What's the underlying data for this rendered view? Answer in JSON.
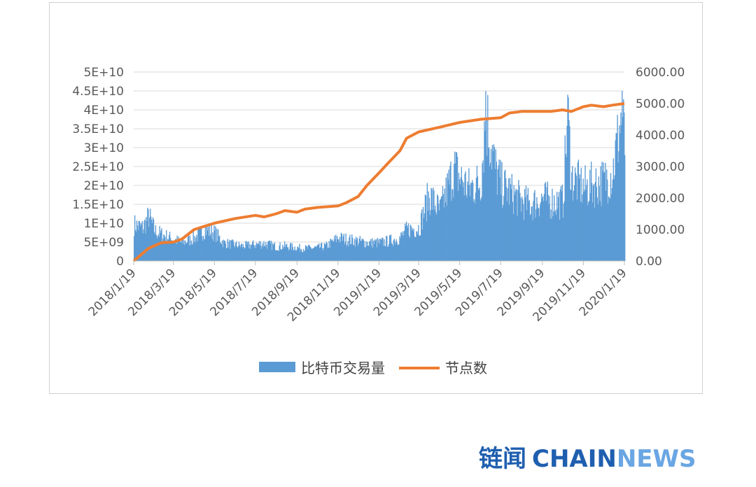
{
  "chart_data": {
    "type": "bar+line",
    "title": "",
    "x_tick_labels": [
      "2018/1/19",
      "2018/3/19",
      "2018/5/19",
      "2018/7/19",
      "2018/9/19",
      "2018/11/19",
      "2019/1/19",
      "2019/3/19",
      "2019/5/19",
      "2019/7/19",
      "2019/9/19",
      "2019/11/19",
      "2020/1/19"
    ],
    "x_range": [
      "2018/1/19",
      "2020/1/19"
    ],
    "y_left": {
      "ticks": [
        "0",
        "5E+09",
        "1E+10",
        "1.5E+10",
        "2E+10",
        "2.5E+10",
        "3E+10",
        "3.5E+10",
        "4E+10",
        "4.5E+10",
        "5E+10"
      ],
      "range": [
        0,
        50000000000
      ]
    },
    "y_right": {
      "ticks": [
        "0.00",
        "1000.00",
        "2000.00",
        "3000.00",
        "4000.00",
        "5000.00",
        "6000.00"
      ],
      "range": [
        0,
        6000
      ]
    },
    "grid": true,
    "legend_position": "bottom",
    "series": [
      {
        "name": "比特币交易量",
        "type": "bar",
        "axis": "left",
        "color": "#5b9bd5",
        "points": [
          [
            "2018/1/19",
            11000000000
          ],
          [
            "2018/2/1",
            10000000000
          ],
          [
            "2018/2/10",
            13500000000
          ],
          [
            "2018/2/19",
            9000000000
          ],
          [
            "2018/3/1",
            8000000000
          ],
          [
            "2018/3/19",
            6500000000
          ],
          [
            "2018/4/1",
            5500000000
          ],
          [
            "2018/4/19",
            7000000000
          ],
          [
            "2018/5/5",
            9500000000
          ],
          [
            "2018/5/19",
            8500000000
          ],
          [
            "2018/6/1",
            5500000000
          ],
          [
            "2018/6/19",
            4800000000
          ],
          [
            "2018/7/1",
            4500000000
          ],
          [
            "2018/7/19",
            5000000000
          ],
          [
            "2018/8/1",
            5300000000
          ],
          [
            "2018/8/19",
            4300000000
          ],
          [
            "2018/9/1",
            4500000000
          ],
          [
            "2018/9/19",
            4000000000
          ],
          [
            "2018/10/1",
            3800000000
          ],
          [
            "2018/10/19",
            4000000000
          ],
          [
            "2018/11/1",
            4500000000
          ],
          [
            "2018/11/19",
            7000000000
          ],
          [
            "2018/12/1",
            6500000000
          ],
          [
            "2018/12/19",
            6000000000
          ],
          [
            "2019/1/1",
            5500000000
          ],
          [
            "2019/1/19",
            5500000000
          ],
          [
            "2019/2/1",
            6000000000
          ],
          [
            "2019/2/19",
            7000000000
          ],
          [
            "2019/3/1",
            9500000000
          ],
          [
            "2019/3/19",
            10000000000
          ],
          [
            "2019/4/3",
            20000000000
          ],
          [
            "2019/4/19",
            15000000000
          ],
          [
            "2019/5/10",
            28000000000
          ],
          [
            "2019/5/19",
            25000000000
          ],
          [
            "2019/6/1",
            22000000000
          ],
          [
            "2019/6/19",
            24000000000
          ],
          [
            "2019/6/26",
            45000000000
          ],
          [
            "2019/7/10",
            28000000000
          ],
          [
            "2019/7/19",
            23000000000
          ],
          [
            "2019/8/1",
            21000000000
          ],
          [
            "2019/8/19",
            18000000000
          ],
          [
            "2019/9/1",
            17000000000
          ],
          [
            "2019/9/19",
            19000000000
          ],
          [
            "2019/10/1",
            18000000000
          ],
          [
            "2019/10/19",
            18000000000
          ],
          [
            "2019/10/26",
            44000000000
          ],
          [
            "2019/11/1",
            25000000000
          ],
          [
            "2019/11/19",
            22000000000
          ],
          [
            "2019/12/1",
            23000000000
          ],
          [
            "2019/12/19",
            24000000000
          ],
          [
            "2020/1/1",
            27000000000
          ],
          [
            "2020/1/15",
            45000000000
          ],
          [
            "2020/1/19",
            34000000000
          ]
        ]
      },
      {
        "name": "节点数",
        "type": "line",
        "axis": "right",
        "color": "#ed7d31",
        "points": [
          [
            "2018/1/19",
            0
          ],
          [
            "2018/2/10",
            400
          ],
          [
            "2018/3/1",
            580
          ],
          [
            "2018/3/19",
            600
          ],
          [
            "2018/4/1",
            700
          ],
          [
            "2018/4/19",
            1000
          ],
          [
            "2018/5/19",
            1200
          ],
          [
            "2018/6/19",
            1350
          ],
          [
            "2018/7/19",
            1450
          ],
          [
            "2018/8/1",
            1400
          ],
          [
            "2018/8/19",
            1500
          ],
          [
            "2018/9/1",
            1600
          ],
          [
            "2018/9/19",
            1550
          ],
          [
            "2018/10/1",
            1650
          ],
          [
            "2018/10/19",
            1700
          ],
          [
            "2018/11/19",
            1750
          ],
          [
            "2018/12/1",
            1850
          ],
          [
            "2018/12/19",
            2050
          ],
          [
            "2019/1/1",
            2400
          ],
          [
            "2019/1/19",
            2800
          ],
          [
            "2019/2/1",
            3100
          ],
          [
            "2019/2/19",
            3500
          ],
          [
            "2019/3/1",
            3900
          ],
          [
            "2019/3/19",
            4100
          ],
          [
            "2019/4/19",
            4250
          ],
          [
            "2019/5/19",
            4400
          ],
          [
            "2019/6/19",
            4500
          ],
          [
            "2019/7/19",
            4550
          ],
          [
            "2019/8/1",
            4700
          ],
          [
            "2019/8/19",
            4750
          ],
          [
            "2019/9/19",
            4750
          ],
          [
            "2019/10/1",
            4750
          ],
          [
            "2019/10/19",
            4800
          ],
          [
            "2019/11/1",
            4750
          ],
          [
            "2019/11/19",
            4900
          ],
          [
            "2019/12/1",
            4950
          ],
          [
            "2019/12/19",
            4900
          ],
          [
            "2020/1/1",
            4950
          ],
          [
            "2020/1/19",
            5000
          ]
        ]
      }
    ]
  },
  "watermark": {
    "cn": "链闻",
    "chain": "CHAIN",
    "news": "NEWS"
  }
}
